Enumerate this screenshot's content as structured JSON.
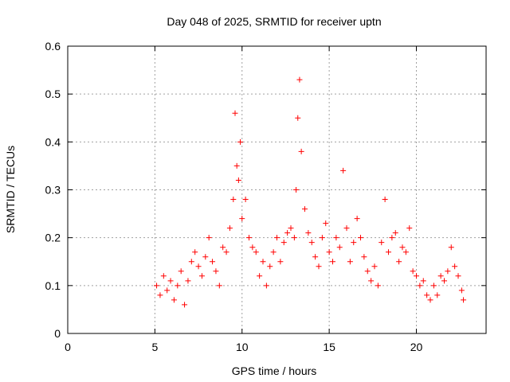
{
  "chart_data": {
    "type": "scatter",
    "title": "Day 048 of 2025, SRMTID for receiver uptn",
    "xlabel": "GPS time / hours",
    "ylabel": "SRMTID / TECUs",
    "xlim": [
      0,
      24
    ],
    "ylim": [
      0,
      0.6
    ],
    "xticks": [
      0,
      5,
      10,
      15,
      20
    ],
    "xtick_labels": [
      "0",
      "5",
      "10",
      "15",
      "20"
    ],
    "yticks": [
      0,
      0.1,
      0.2,
      0.3,
      0.4,
      0.5,
      0.6
    ],
    "ytick_labels": [
      "0",
      "0.1",
      "0.2",
      "0.3",
      "0.4",
      "0.5",
      "0.6"
    ],
    "grid": true,
    "marker": "plus",
    "color": "#ff0000",
    "series": [
      {
        "name": "SRMTID",
        "x": [
          5.1,
          5.3,
          5.5,
          5.7,
          5.9,
          6.1,
          6.3,
          6.5,
          6.7,
          6.9,
          7.1,
          7.3,
          7.5,
          7.7,
          7.9,
          8.1,
          8.3,
          8.5,
          8.7,
          8.9,
          9.1,
          9.3,
          9.5,
          9.6,
          9.7,
          9.8,
          9.9,
          10.0,
          10.2,
          10.4,
          10.6,
          10.8,
          11.0,
          11.2,
          11.4,
          11.6,
          11.8,
          12.0,
          12.2,
          12.4,
          12.6,
          12.8,
          13.0,
          13.1,
          13.2,
          13.3,
          13.4,
          13.6,
          13.8,
          14.0,
          14.2,
          14.4,
          14.6,
          14.8,
          15.0,
          15.2,
          15.4,
          15.6,
          15.8,
          16.0,
          16.2,
          16.4,
          16.6,
          16.8,
          17.0,
          17.2,
          17.4,
          17.6,
          17.8,
          18.0,
          18.2,
          18.4,
          18.6,
          18.8,
          19.0,
          19.2,
          19.4,
          19.6,
          19.8,
          20.0,
          20.2,
          20.4,
          20.6,
          20.8,
          21.0,
          21.2,
          21.4,
          21.6,
          21.8,
          22.0,
          22.2,
          22.4,
          22.6,
          22.7
        ],
        "y": [
          0.1,
          0.08,
          0.12,
          0.09,
          0.11,
          0.07,
          0.1,
          0.13,
          0.06,
          0.11,
          0.15,
          0.17,
          0.14,
          0.12,
          0.16,
          0.2,
          0.15,
          0.13,
          0.1,
          0.18,
          0.17,
          0.22,
          0.28,
          0.46,
          0.35,
          0.32,
          0.4,
          0.24,
          0.28,
          0.2,
          0.18,
          0.17,
          0.12,
          0.15,
          0.1,
          0.14,
          0.17,
          0.2,
          0.15,
          0.19,
          0.21,
          0.22,
          0.2,
          0.3,
          0.45,
          0.53,
          0.38,
          0.26,
          0.21,
          0.19,
          0.16,
          0.14,
          0.2,
          0.23,
          0.17,
          0.15,
          0.2,
          0.18,
          0.34,
          0.22,
          0.15,
          0.19,
          0.24,
          0.2,
          0.16,
          0.13,
          0.11,
          0.14,
          0.1,
          0.19,
          0.28,
          0.17,
          0.2,
          0.21,
          0.15,
          0.18,
          0.17,
          0.22,
          0.13,
          0.12,
          0.1,
          0.11,
          0.08,
          0.07,
          0.1,
          0.08,
          0.12,
          0.11,
          0.13,
          0.18,
          0.14,
          0.12,
          0.09,
          0.07
        ]
      }
    ]
  }
}
